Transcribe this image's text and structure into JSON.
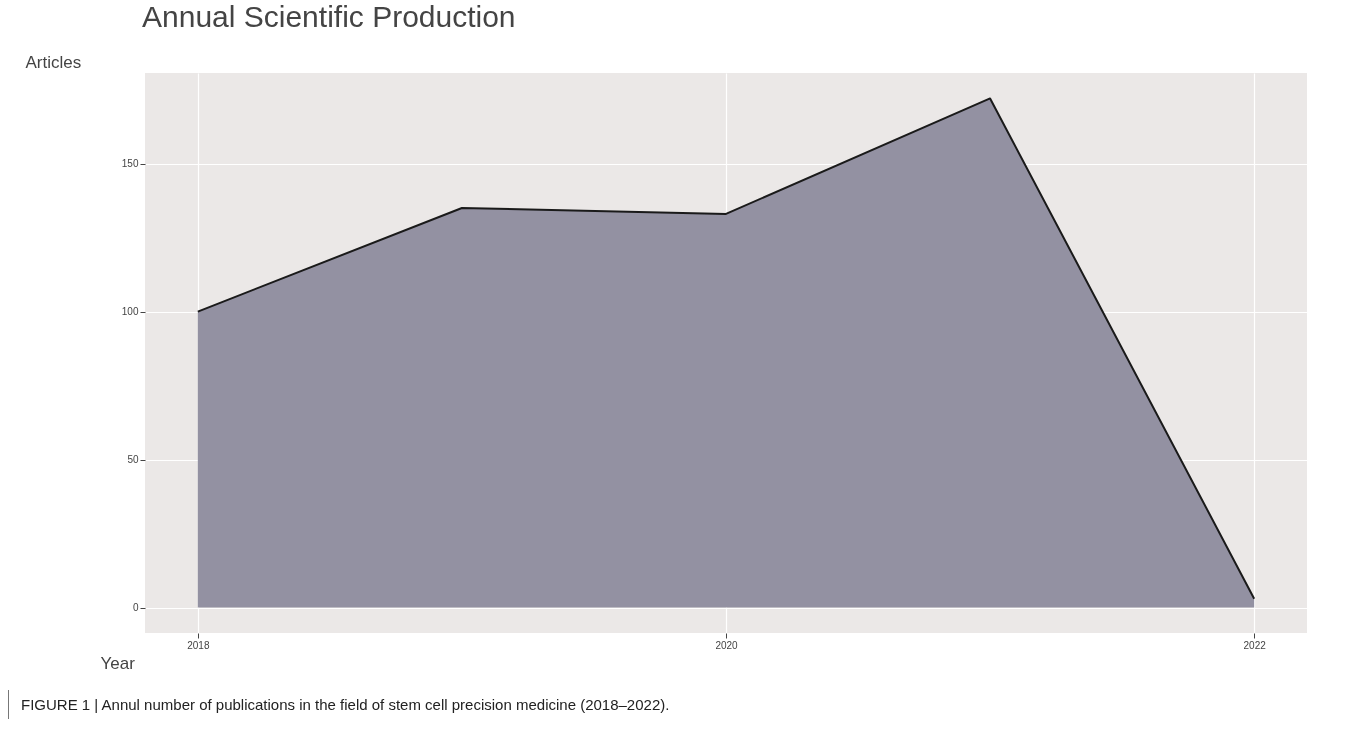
{
  "chart_data": {
    "type": "area",
    "title": "Annual Scientific Production",
    "xlabel": "Year",
    "ylabel": "Articles",
    "x": [
      2018,
      2019,
      2020,
      2021,
      2022
    ],
    "series": [
      {
        "color": "#9391a2",
        "values": [
          100,
          135,
          133,
          172,
          3
        ]
      }
    ],
    "xlim": [
      2017.8,
      2022.2
    ],
    "xticks": [
      2018,
      2020,
      2022
    ],
    "ylim": [
      -8.6,
      180.6
    ],
    "yticks": [
      0,
      50,
      100,
      150
    ],
    "grid": true,
    "annotations": [
      "FIGURE 1 | Annul number of publications in the field of stem cell precision medicine (2018–2022)."
    ]
  }
}
